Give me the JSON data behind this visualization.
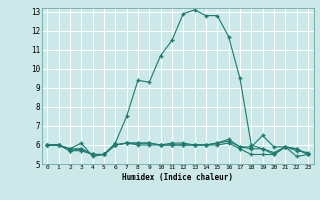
{
  "xlabel": "Humidex (Indice chaleur)",
  "bg_color": "#cce8e8",
  "grid_color": "#ffffff",
  "line_color": "#1a7a6e",
  "xlim": [
    -0.5,
    23.5
  ],
  "ylim": [
    5,
    13.2
  ],
  "xticks": [
    0,
    1,
    2,
    3,
    4,
    5,
    6,
    7,
    8,
    9,
    10,
    11,
    12,
    13,
    14,
    15,
    16,
    17,
    18,
    19,
    20,
    21,
    22,
    23
  ],
  "yticks": [
    5,
    6,
    7,
    8,
    9,
    10,
    11,
    12,
    13
  ],
  "lines": [
    {
      "x": [
        0,
        1,
        2,
        3,
        4,
        5,
        6,
        7,
        8,
        9,
        10,
        11,
        12,
        13,
        14,
        15,
        16,
        17,
        18,
        19,
        20,
        21,
        22,
        23
      ],
      "y": [
        6.0,
        6.0,
        5.8,
        6.1,
        5.4,
        5.5,
        6.1,
        7.5,
        9.4,
        9.3,
        10.7,
        11.5,
        12.9,
        13.1,
        12.8,
        12.8,
        11.7,
        9.5,
        6.0,
        5.8,
        5.5,
        5.9,
        5.4,
        5.5
      ]
    },
    {
      "x": [
        0,
        1,
        2,
        3,
        4,
        5,
        6,
        7,
        8,
        9,
        10,
        11,
        12,
        13,
        14,
        15,
        16,
        17,
        18,
        19,
        20,
        21,
        22,
        23
      ],
      "y": [
        6.0,
        6.0,
        5.7,
        5.7,
        5.5,
        5.5,
        6.0,
        6.1,
        6.0,
        6.0,
        6.0,
        6.0,
        6.0,
        6.0,
        6.0,
        6.0,
        6.1,
        5.8,
        5.5,
        5.5,
        5.5,
        5.9,
        5.8,
        5.5
      ]
    },
    {
      "x": [
        0,
        1,
        2,
        3,
        4,
        5,
        6,
        7,
        8,
        9,
        10,
        11,
        12,
        13,
        14,
        15,
        16,
        17,
        18,
        19,
        20,
        21,
        22,
        23
      ],
      "y": [
        6.0,
        6.0,
        5.7,
        5.8,
        5.5,
        5.5,
        6.0,
        6.1,
        6.1,
        6.1,
        6.0,
        6.1,
        6.1,
        6.0,
        6.0,
        6.1,
        6.2,
        5.9,
        5.8,
        5.8,
        5.6,
        5.9,
        5.8,
        5.5
      ]
    },
    {
      "x": [
        0,
        1,
        2,
        3,
        4,
        5,
        6,
        7,
        8,
        9,
        10,
        11,
        12,
        13,
        14,
        15,
        16,
        17,
        18,
        19,
        20,
        21,
        22,
        23
      ],
      "y": [
        6.0,
        6.0,
        5.8,
        5.8,
        5.5,
        5.5,
        6.0,
        6.1,
        6.1,
        6.1,
        6.0,
        6.0,
        6.0,
        6.0,
        6.0,
        6.1,
        6.3,
        5.9,
        5.9,
        6.5,
        5.9,
        5.9,
        5.7,
        5.6
      ]
    }
  ]
}
